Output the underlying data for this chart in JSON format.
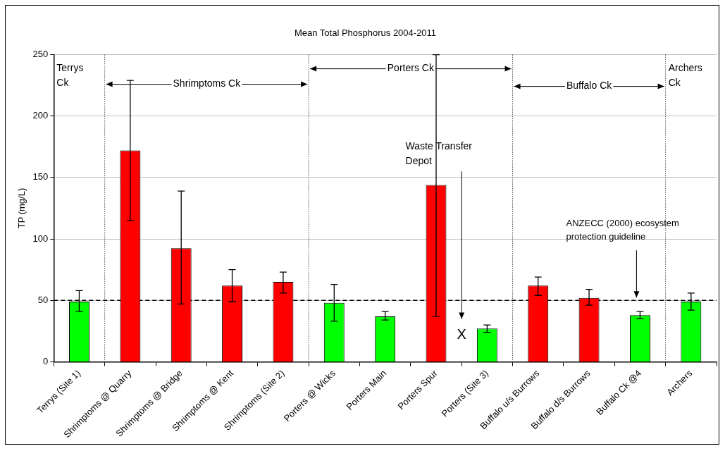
{
  "chart_data": {
    "type": "bar",
    "title": "Mean Total Phosphorus 2004-2011",
    "ylabel": "TP (mg/L)",
    "categories": [
      "Terrys (Site 1)",
      "Shrimptoms @ Quarry",
      "Shrimptoms @ Bridge",
      "Shrimptoms @ Kent",
      "Shrimptoms (Site 2)",
      "Porters @ Wicks",
      "Porters Main",
      "Porters Spur",
      "Porters (Site 3)",
      "Buffalo u/s Burrows",
      "Buffalo d/s Burrows",
      "Buffalo Ck @4",
      "Archers"
    ],
    "values": [
      49,
      172,
      92.5,
      62,
      65,
      48,
      37,
      144,
      27,
      62,
      52,
      38,
      49
    ],
    "colors": [
      "#00ff00",
      "#ff0000",
      "#ff0000",
      "#ff0000",
      "#ff0000",
      "#00ff00",
      "#00ff00",
      "#ff0000",
      "#00ff00",
      "#ff0000",
      "#ff0000",
      "#00ff00",
      "#00ff00"
    ],
    "errors": [
      [
        41,
        58
      ],
      [
        115,
        229
      ],
      [
        47,
        139
      ],
      [
        49,
        75
      ],
      [
        56,
        73
      ],
      [
        33,
        63
      ],
      [
        34,
        41
      ],
      [
        37,
        250
      ],
      [
        24,
        30
      ],
      [
        54,
        69
      ],
      [
        46,
        59
      ],
      [
        35,
        41
      ],
      [
        42,
        56
      ]
    ],
    "ylim": [
      0,
      250
    ],
    "yticks": [
      0,
      50,
      100,
      150,
      200,
      250
    ],
    "grid": "y",
    "legend": false,
    "ref_lines": [
      {
        "axis": "y",
        "value": 50,
        "label": "ANZECC (2000) ecosystem protection guideline",
        "color": "#000000",
        "line_style": "dashed"
      }
    ],
    "annotations": [
      "Terrys Ck",
      "Shrimptoms Ck",
      "Porters Ck",
      "Buffalo Ck",
      "Archers Ck",
      "Waste Transfer Depot",
      "X"
    ]
  }
}
